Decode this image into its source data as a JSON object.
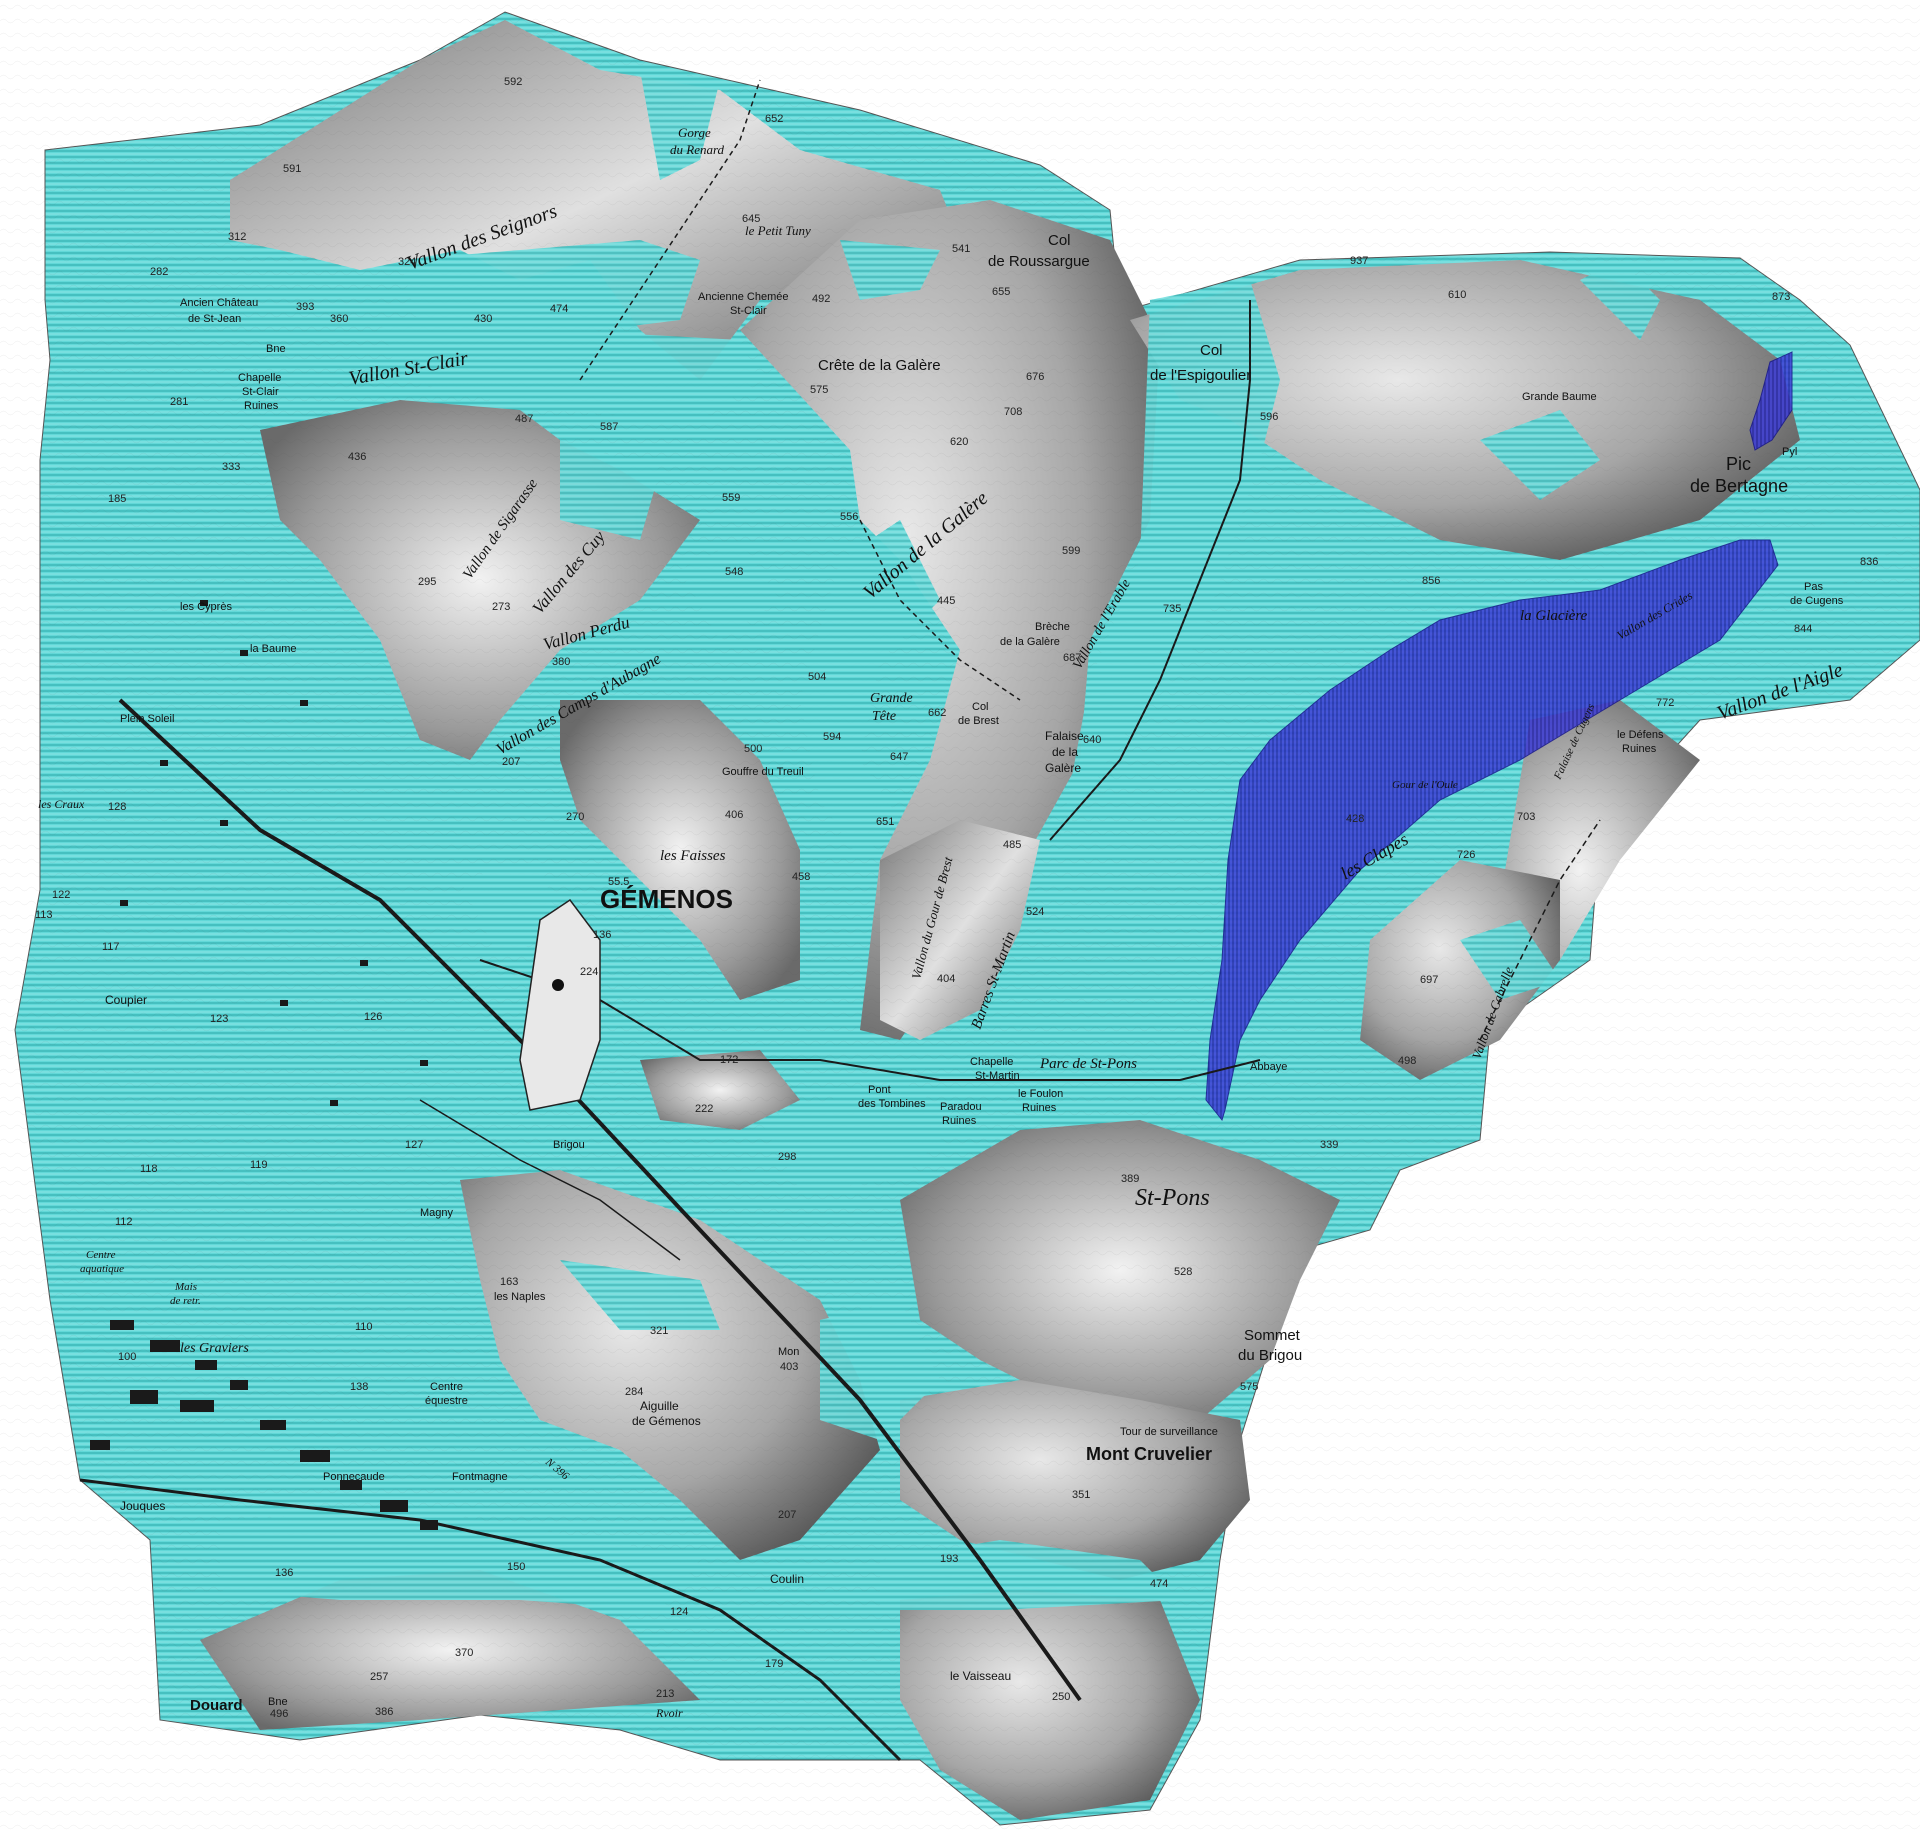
{
  "colors": {
    "background": "#ffffff",
    "terrain_light": "#d6d6d6",
    "terrain_dark": "#6e6e6e",
    "cyan_zone": "#5fd6d6",
    "cyan_hatch": "#2aa8a8",
    "blue_zone": "#2b2bc9",
    "blue_hatch": "#1a1a8c",
    "road": "#222222"
  },
  "legend_zones": [
    "cyan-hatched-zone",
    "blue-hatched-zone"
  ],
  "places": {
    "gemenos": "GÉMENOS",
    "mont_cruvelier": "Mont Cruvelier",
    "st_pons": "St-Pons",
    "sommet_brigou_1": "Sommet",
    "sommet_brigou_2": "du Brigou",
    "col_roussargue_1": "Col",
    "col_roussargue_2": "de Roussargue",
    "vallon_seignors": "Vallon des Seignors",
    "gorge_renard_1": "Gorge",
    "gorge_renard_2": "du Renard",
    "petit_tuny": "le Petit Tuny",
    "crete_galere": "Crête de la Galère",
    "vallon_galere": "Vallon de la Galère",
    "vallon_st_clair": "Vallon St-Clair",
    "vallon_sigarasse": "Vallon de Sigarasse",
    "vallon_cuy": "Vallon des Cuy",
    "vallon_perdu": "Vallon Perdu",
    "vallon_camps": "Vallon des Camps d'Aubagne",
    "grande_tete_1": "Grande",
    "grande_tete_2": "Tête",
    "col_brest_1": "Col",
    "col_brest_2": "de Brest",
    "breche_1": "Brèche",
    "breche_2": "de la Galère",
    "falaise_galere_1": "Falaise",
    "falaise_galere_2": "de la",
    "falaise_galere_3": "Galère",
    "vallon_erable": "Vallon de l'Erable",
    "gouffre_treuil": "Gouffre du Treuil",
    "les_faisses": "les Faisses",
    "barres_st_martin": "Barres St-Martin",
    "vallon_gour_brest": "Vallon du Gour de Brest",
    "gour_oule": "Gour de l'Oule",
    "les_clapes": "les Clapes",
    "vallon_aigle": "Vallon de l'Aigle",
    "vallon_crides": "Vallon des Crides",
    "pas_cugens_1": "Pas",
    "pas_cugens_2": "de Cugens",
    "falaise_cugens": "Falaise de Cugens",
    "pic_bertagne_1": "Pic",
    "pic_bertagne_2": "de Bertagne",
    "grande_baume": "Grande Baume",
    "col_espigoulier_1": "Col",
    "col_espigoulier_2": "de l'Espigoulier",
    "la_glaciere": "la Glacière",
    "vallon_cabrelle": "Vallon de Cabrelle",
    "abbaye": "Abbaye",
    "chapelle_st_martin_1": "Chapelle",
    "chapelle_st_martin_2": "St-Martin",
    "parc_st_pons": "Parc de St-Pons",
    "pont_tombines_1": "Pont",
    "pont_tombines_2": "des Tombines",
    "le_foulon_1": "le Foulon",
    "le_foulon_2": "Ruines",
    "paradou_1": "Paradou",
    "paradou_2": "Ruines",
    "les_defens_1": "le Défens",
    "les_defens_2": "Ruines",
    "tour_surveillance": "Tour de surveillance",
    "aiguille_1": "Aiguille",
    "aiguille_2": "de Gémenos",
    "mon": "Mon",
    "le_vaisseau": "le Vaisseau",
    "coulin": "Coulin",
    "douard": "Douard",
    "bne_douard": "Bne",
    "rvoir": "Rvoir",
    "brigou": "Brigou",
    "magny": "Magny",
    "les_naples": "les Naples",
    "les_graviers": "les Graviers",
    "centre_equestre_1": "Centre",
    "centre_equestre_2": "équestre",
    "fontmagne": "Fontmagne",
    "jouques": "Jouques",
    "coupier": "Coupier",
    "les_craux": "les Craux",
    "plein_soleil": "Plein Soleil",
    "la_baume": "la Baume",
    "les_cypres": "les Cyprès",
    "ancien_chateau_1": "Ancien Château",
    "ancien_chateau_2": "de St-Jean",
    "chapelle_st_clair_1": "Chapelle",
    "chapelle_st_clair_2": "St-Clair",
    "chapelle_st_clair_3": "Ruines",
    "ancienne_chemee_1": "Ancienne Chemée",
    "ancienne_chemee_2": "St-Clair",
    "centre_aquatique_1": "Centre",
    "centre_aquatique_2": "aquatique",
    "mais_retraite_1": "Mais",
    "mais_retraite_2": "de retr.",
    "pyl": "Pyl",
    "bne": "Bne",
    "ponnecaude": "Ponnecaude",
    "nationale": "N 396"
  },
  "elevations": [
    "652",
    "645",
    "591",
    "592",
    "541",
    "937",
    "873",
    "655",
    "492",
    "676",
    "575",
    "708",
    "620",
    "599",
    "445",
    "735",
    "687",
    "662",
    "647",
    "594",
    "640",
    "651",
    "485",
    "524",
    "404",
    "500",
    "406",
    "270",
    "458",
    "587",
    "436",
    "487",
    "393",
    "360",
    "430",
    "474",
    "312",
    "282",
    "281",
    "333",
    "185",
    "324",
    "273",
    "380",
    "295",
    "207",
    "548",
    "559",
    "556",
    "504",
    "55.5",
    "224",
    "136",
    "172",
    "222",
    "298",
    "389",
    "528",
    "575",
    "351",
    "474",
    "250",
    "213",
    "179",
    "124",
    "193",
    "207",
    "150",
    "136",
    "370",
    "257",
    "386",
    "496",
    "321",
    "284",
    "403",
    "163",
    "118",
    "112",
    "110",
    "100",
    "138",
    "127",
    "122",
    "128",
    "113",
    "117",
    "123",
    "126",
    "119",
    "610",
    "596",
    "856",
    "772",
    "844",
    "836",
    "703",
    "726",
    "697",
    "498",
    "339",
    "428"
  ]
}
